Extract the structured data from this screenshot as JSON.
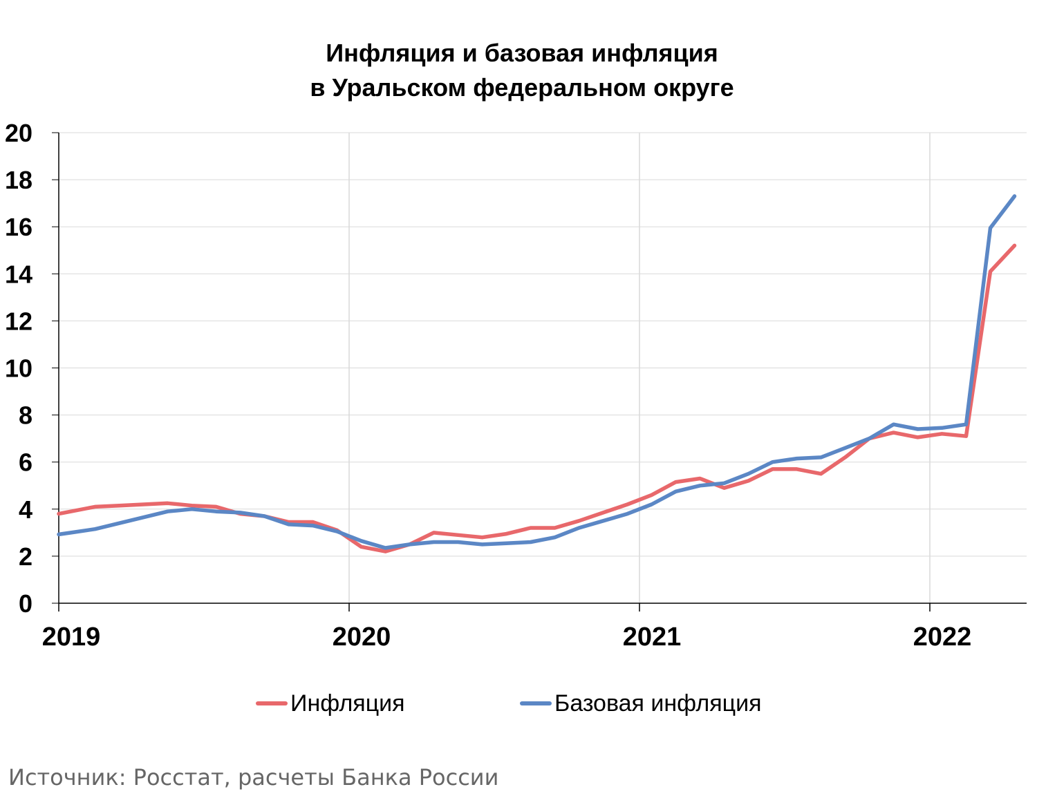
{
  "chart_data": {
    "type": "line",
    "title": "Инфляция и базовая инфляция",
    "subtitle": "в  Уральском федеральном округе",
    "ylim": [
      0,
      20
    ],
    "yticks": [
      "0",
      "2",
      "4",
      "6",
      "8",
      "10",
      "12",
      "14",
      "16",
      "18",
      "20"
    ],
    "xticks": [
      "2019",
      "2020",
      "2021",
      "2022"
    ],
    "grid": true,
    "legend_position": "bottom",
    "x": [
      "2019-01",
      "2019-02",
      "2019-03",
      "2019-04",
      "2019-05",
      "2019-06",
      "2019-07",
      "2019-08",
      "2019-09",
      "2019-10",
      "2019-11",
      "2019-12",
      "2020-01",
      "2020-02",
      "2020-03",
      "2020-04",
      "2020-05",
      "2020-06",
      "2020-07",
      "2020-08",
      "2020-09",
      "2020-10",
      "2020-11",
      "2020-12",
      "2021-01",
      "2021-02",
      "2021-03",
      "2021-04",
      "2021-05",
      "2021-06",
      "2021-07",
      "2021-08",
      "2021-09",
      "2021-10",
      "2021-11",
      "2021-12",
      "2022-01",
      "2022-02",
      "2022-03",
      "2022-04"
    ],
    "series": [
      {
        "name": "Инфляция",
        "color": "#E8686B",
        "values": [
          3.9,
          4.1,
          4.15,
          4.2,
          4.25,
          4.15,
          4.1,
          3.8,
          3.7,
          3.45,
          3.45,
          3.1,
          2.4,
          2.2,
          2.5,
          3.0,
          2.9,
          2.8,
          2.95,
          3.2,
          3.2,
          3.5,
          3.85,
          4.2,
          4.6,
          5.15,
          5.3,
          4.9,
          5.2,
          5.7,
          5.7,
          5.5,
          6.2,
          7.0,
          7.25,
          7.05,
          7.2,
          7.1,
          14.1,
          15.2
        ]
      },
      {
        "name": "Базовая инфляция",
        "color": "#5B87C5",
        "values": [
          3.0,
          3.15,
          3.4,
          3.65,
          3.9,
          4.0,
          3.9,
          3.85,
          3.7,
          3.35,
          3.3,
          3.05,
          2.65,
          2.35,
          2.5,
          2.6,
          2.6,
          2.5,
          2.55,
          2.6,
          2.8,
          3.2,
          3.5,
          3.8,
          4.2,
          4.75,
          5.0,
          5.1,
          5.5,
          6.0,
          6.15,
          6.2,
          6.6,
          7.0,
          7.6,
          7.4,
          7.45,
          7.6,
          15.95,
          17.3
        ]
      }
    ]
  },
  "source": "Источник: Росстат, расчеты Банка России"
}
